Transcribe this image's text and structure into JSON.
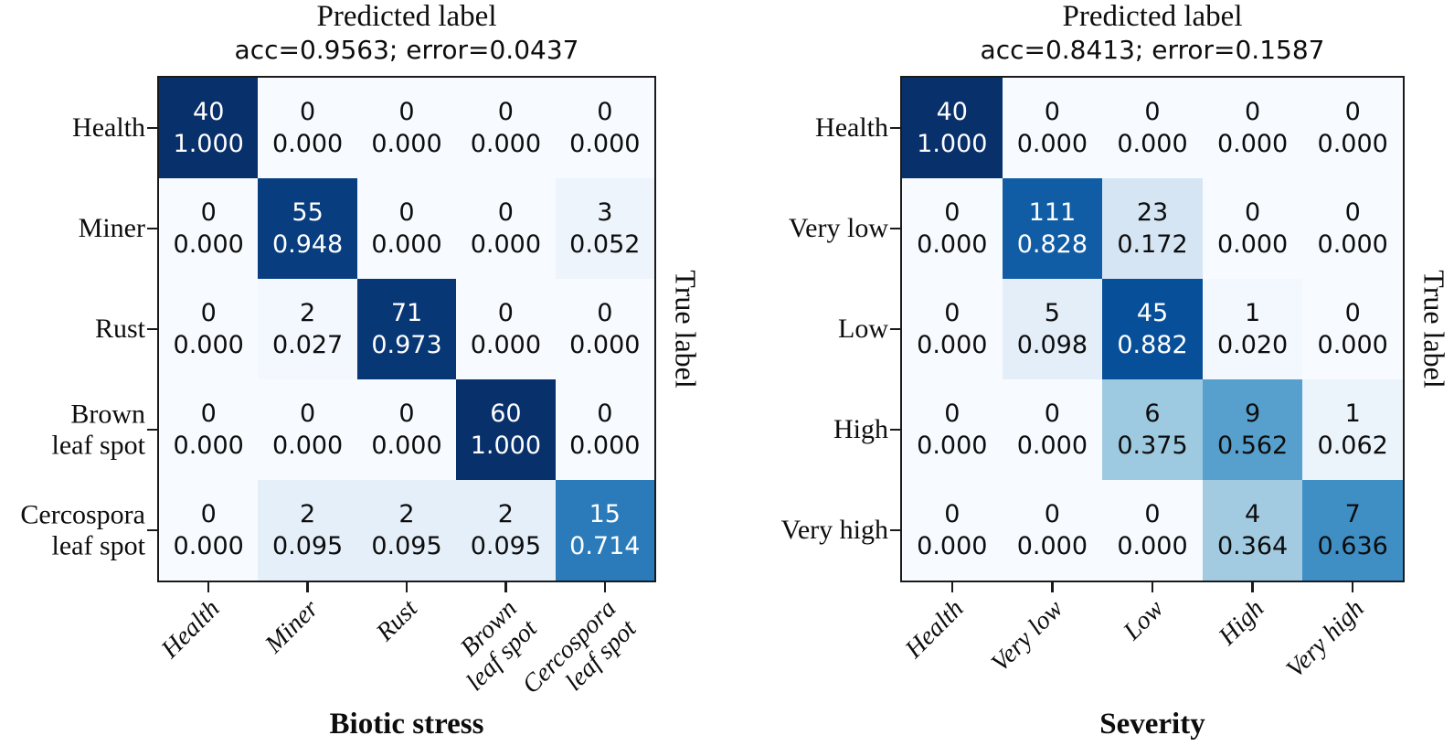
{
  "style": {
    "background": "#ffffff",
    "text_color": "#0d0d0d",
    "cell_text_light": "#ffffff",
    "cell_text_dark": "#0d0d0d",
    "heatmap_border": "#1a1a1a",
    "colormap": "Blues",
    "colormap_stops": [
      {
        "t": 0.0,
        "color": "#f7fbff"
      },
      {
        "t": 0.125,
        "color": "#deebf7"
      },
      {
        "t": 0.25,
        "color": "#c6dbef"
      },
      {
        "t": 0.375,
        "color": "#9ecae1"
      },
      {
        "t": 0.5,
        "color": "#6baed6"
      },
      {
        "t": 0.625,
        "color": "#4292c6"
      },
      {
        "t": 0.75,
        "color": "#2171b5"
      },
      {
        "t": 0.875,
        "color": "#08519c"
      },
      {
        "t": 1.0,
        "color": "#08306b"
      }
    ],
    "white_text_threshold": 0.7
  },
  "chart_data": [
    {
      "type": "heatmap",
      "name": "biotic-stress-confusion-matrix",
      "title": "Predicted label",
      "subtitle": "acc=0.9563; error=0.0437",
      "xlabel": "Biotic stress",
      "ylabel": "True label",
      "x_tick_labels": [
        "Health",
        "Miner",
        "Rust",
        "Brown\nleaf spot",
        "Cercospora\nleaf spot"
      ],
      "y_tick_labels": [
        "Health",
        "Miner",
        "Rust",
        "Brown\nleaf spot",
        "Cercospora\nleaf spot"
      ],
      "value_range": [
        0,
        1
      ],
      "cell_value_lines": [
        "count",
        "row_fraction"
      ],
      "counts": [
        [
          40,
          0,
          0,
          0,
          0
        ],
        [
          0,
          55,
          0,
          0,
          3
        ],
        [
          0,
          2,
          71,
          0,
          0
        ],
        [
          0,
          0,
          0,
          60,
          0
        ],
        [
          0,
          2,
          2,
          2,
          15
        ]
      ],
      "fractions": [
        [
          "1.000",
          "0.000",
          "0.000",
          "0.000",
          "0.000"
        ],
        [
          "0.000",
          "0.948",
          "0.000",
          "0.000",
          "0.052"
        ],
        [
          "0.000",
          "0.027",
          "0.973",
          "0.000",
          "0.000"
        ],
        [
          "0.000",
          "0.000",
          "0.000",
          "1.000",
          "0.000"
        ],
        [
          "0.000",
          "0.095",
          "0.095",
          "0.095",
          "0.714"
        ]
      ]
    },
    {
      "type": "heatmap",
      "name": "severity-confusion-matrix",
      "title": "Predicted label",
      "subtitle": "acc=0.8413; error=0.1587",
      "xlabel": "Severity",
      "ylabel": "True label",
      "x_tick_labels": [
        "Health",
        "Very low",
        "Low",
        "High",
        "Very high"
      ],
      "y_tick_labels": [
        "Health",
        "Very low",
        "Low",
        "High",
        "Very high"
      ],
      "value_range": [
        0,
        1
      ],
      "cell_value_lines": [
        "count",
        "row_fraction"
      ],
      "counts": [
        [
          40,
          0,
          0,
          0,
          0
        ],
        [
          0,
          111,
          23,
          0,
          0
        ],
        [
          0,
          5,
          45,
          1,
          0
        ],
        [
          0,
          0,
          6,
          9,
          1
        ],
        [
          0,
          0,
          0,
          4,
          7
        ]
      ],
      "fractions": [
        [
          "1.000",
          "0.000",
          "0.000",
          "0.000",
          "0.000"
        ],
        [
          "0.000",
          "0.828",
          "0.172",
          "0.000",
          "0.000"
        ],
        [
          "0.000",
          "0.098",
          "0.882",
          "0.020",
          "0.000"
        ],
        [
          "0.000",
          "0.000",
          "0.375",
          "0.562",
          "0.062"
        ],
        [
          "0.000",
          "0.000",
          "0.000",
          "0.364",
          "0.636"
        ]
      ]
    }
  ]
}
